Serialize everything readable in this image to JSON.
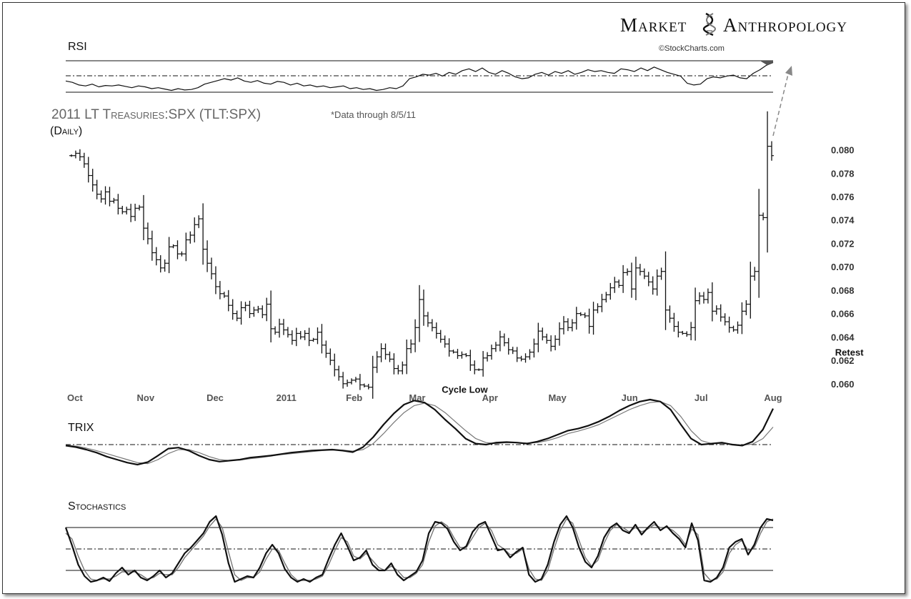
{
  "header": {
    "brand_left": "Market",
    "brand_right": "Anthropology",
    "credit": "©StockCharts.com"
  },
  "chart_title": "2011  LT Treasuries:SPX (TLT:SPX)",
  "chart_note": "*Data through 8/5/11",
  "chart_period": "(Daily)",
  "colors": {
    "ink": "#111111",
    "secondary": "#777777",
    "arrow": "#888888",
    "rsi_fill": "#555555"
  },
  "chart_data": [
    {
      "type": "line",
      "panel": "RSI",
      "title": "RSI",
      "reference_lines": [
        "upper",
        "middle (dash-dot)",
        "lower"
      ],
      "series": [
        {
          "values": [
            55,
            52,
            46,
            44,
            48,
            42,
            45,
            44,
            46,
            43,
            40,
            44,
            42,
            38,
            40,
            37,
            34,
            38,
            35,
            36,
            40,
            48,
            52,
            56,
            60,
            57,
            62,
            55,
            52,
            56,
            50,
            48,
            54,
            52,
            46,
            50,
            44,
            46,
            42,
            44,
            40,
            42,
            44,
            38,
            40,
            36,
            38,
            34,
            36,
            40,
            38,
            44,
            60,
            64,
            70,
            68,
            72,
            66,
            74,
            70,
            78,
            82,
            76,
            84,
            74,
            70,
            78,
            72,
            64,
            60,
            62,
            70,
            74,
            68,
            76,
            72,
            78,
            70,
            74,
            80,
            76,
            78,
            74,
            72,
            82,
            80,
            76,
            84,
            78,
            86,
            80,
            74,
            70,
            66,
            50,
            46,
            48,
            60,
            64,
            62,
            66,
            68,
            62,
            60,
            72,
            80,
            90,
            96
          ]
        }
      ]
    },
    {
      "type": "bar",
      "panel": "price",
      "x_tick_labels": [
        "Oct",
        "Nov",
        "Dec",
        "2011",
        "Feb",
        "Mar",
        "Apr",
        "May",
        "Jun",
        "Jul",
        "Aug"
      ],
      "y_tick_labels": [
        "0.060",
        "0.062",
        "0.064",
        "0.066",
        "0.068",
        "0.070",
        "0.072",
        "0.074",
        "0.076",
        "0.078",
        "0.080"
      ],
      "ylim": [
        0.0595,
        0.0815
      ],
      "annotations": [
        {
          "text": "Cycle Low",
          "x": 94,
          "y": 0.0597
        },
        {
          "text": "Retest",
          "x": 185,
          "y": 0.0635
        }
      ],
      "series": [
        {
          "values": [
            0.0795,
            0.0797,
            0.0794,
            0.0788,
            0.0778,
            0.077,
            0.0762,
            0.0758,
            0.0764,
            0.0756,
            0.0757,
            0.075,
            0.0747,
            0.0749,
            0.0743,
            0.075,
            0.0751,
            0.0733,
            0.0724,
            0.0712,
            0.0706,
            0.0699,
            0.0703,
            0.0717,
            0.0718,
            0.0711,
            0.0711,
            0.0723,
            0.0727,
            0.0736,
            0.0741,
            0.0715,
            0.0703,
            0.0694,
            0.0683,
            0.0677,
            0.0675,
            0.0667,
            0.066,
            0.0656,
            0.0665,
            0.0667,
            0.066,
            0.0663,
            0.0664,
            0.0659,
            0.0668,
            0.0647,
            0.0644,
            0.0651,
            0.0646,
            0.0642,
            0.0637,
            0.0643,
            0.064,
            0.0643,
            0.0637,
            0.0638,
            0.0644,
            0.0633,
            0.0626,
            0.062,
            0.0612,
            0.0606,
            0.06,
            0.0601,
            0.0603,
            0.0604,
            0.0599,
            0.0598,
            0.0597,
            0.0614,
            0.0623,
            0.063,
            0.0625,
            0.0621,
            0.0613,
            0.0611,
            0.0616,
            0.063,
            0.0634,
            0.0648,
            0.0672,
            0.0658,
            0.0652,
            0.0648,
            0.0643,
            0.0638,
            0.0634,
            0.0628,
            0.0627,
            0.0624,
            0.0625,
            0.0624,
            0.0616,
            0.0612,
            0.0612,
            0.0622,
            0.0624,
            0.063,
            0.0633,
            0.064,
            0.0635,
            0.0629,
            0.0628,
            0.0622,
            0.0621,
            0.0623,
            0.0627,
            0.0634,
            0.0645,
            0.064,
            0.0637,
            0.0632,
            0.0638,
            0.0647,
            0.0653,
            0.0648,
            0.0652,
            0.066,
            0.0659,
            0.0658,
            0.0649,
            0.0663,
            0.0666,
            0.0672,
            0.0676,
            0.0682,
            0.0687,
            0.0684,
            0.0695,
            0.0696,
            0.0681,
            0.0699,
            0.0696,
            0.0692,
            0.0687,
            0.0681,
            0.0692,
            0.0696,
            0.0663,
            0.0656,
            0.0649,
            0.0644,
            0.0643,
            0.0642,
            0.0648,
            0.0671,
            0.0675,
            0.0672,
            0.0678,
            0.0662,
            0.0664,
            0.0657,
            0.0653,
            0.0648,
            0.0646,
            0.065,
            0.0662,
            0.0668,
            0.0692,
            0.0696,
            0.0744,
            0.0742,
            0.0803,
            0.0795
          ]
        }
      ]
    },
    {
      "type": "line",
      "panel": "TRIX",
      "title": "TRIX",
      "reference_lines": [
        "zero (dash-dot)"
      ],
      "series": [
        {
          "values": [
            -0.02,
            -0.05,
            -0.1,
            -0.16,
            -0.24,
            -0.3,
            -0.36,
            -0.4,
            -0.35,
            -0.22,
            -0.08,
            -0.06,
            -0.12,
            -0.22,
            -0.3,
            -0.34,
            -0.32,
            -0.3,
            -0.26,
            -0.24,
            -0.22,
            -0.19,
            -0.16,
            -0.14,
            -0.12,
            -0.11,
            -0.1,
            -0.12,
            -0.15,
            -0.05,
            0.15,
            0.4,
            0.62,
            0.8,
            0.88,
            0.84,
            0.7,
            0.5,
            0.32,
            0.12,
            0.02,
            0,
            0.04,
            0.05,
            0.04,
            0.02,
            0.06,
            0.12,
            0.2,
            0.28,
            0.32,
            0.38,
            0.46,
            0.56,
            0.68,
            0.78,
            0.86,
            0.9,
            0.86,
            0.7,
            0.4,
            0.12,
            0,
            0.02,
            0.04,
            0,
            -0.02,
            0.06,
            0.3,
            0.72
          ]
        },
        {
          "values": [
            -0.01,
            -0.03,
            -0.07,
            -0.12,
            -0.18,
            -0.24,
            -0.3,
            -0.36,
            -0.38,
            -0.3,
            -0.18,
            -0.1,
            -0.1,
            -0.16,
            -0.24,
            -0.3,
            -0.32,
            -0.31,
            -0.28,
            -0.26,
            -0.23,
            -0.2,
            -0.18,
            -0.16,
            -0.14,
            -0.12,
            -0.11,
            -0.11,
            -0.13,
            -0.1,
            0.02,
            0.22,
            0.44,
            0.64,
            0.78,
            0.83,
            0.78,
            0.64,
            0.46,
            0.28,
            0.12,
            0.04,
            0.02,
            0.04,
            0.04,
            0.03,
            0.04,
            0.08,
            0.14,
            0.22,
            0.27,
            0.33,
            0.4,
            0.5,
            0.6,
            0.7,
            0.78,
            0.84,
            0.86,
            0.78,
            0.56,
            0.28,
            0.08,
            0.02,
            0.02,
            0.01,
            -0.01,
            0.01,
            0.12,
            0.35
          ]
        }
      ]
    },
    {
      "type": "line",
      "panel": "Stochastics",
      "title": "Stochastics",
      "reference_lines": [
        80,
        50,
        20
      ],
      "series": [
        {
          "values": [
            80,
            55,
            28,
            12,
            4,
            6,
            10,
            5,
            16,
            24,
            14,
            20,
            10,
            6,
            12,
            20,
            10,
            16,
            30,
            44,
            52,
            62,
            72,
            88,
            96,
            70,
            30,
            4,
            8,
            12,
            10,
            24,
            44,
            56,
            44,
            22,
            10,
            4,
            8,
            4,
            10,
            14,
            36,
            56,
            72,
            54,
            34,
            38,
            48,
            28,
            20,
            20,
            30,
            14,
            6,
            12,
            18,
            34,
            72,
            88,
            86,
            78,
            60,
            48,
            54,
            74,
            84,
            88,
            68,
            48,
            50,
            38,
            46,
            52,
            14,
            4,
            8,
            28,
            60,
            84,
            96,
            80,
            52,
            32,
            24,
            40,
            66,
            80,
            86,
            76,
            72,
            84,
            70,
            80,
            88,
            76,
            82,
            72,
            64,
            52,
            86,
            62,
            6,
            4,
            10,
            24,
            52,
            60,
            64,
            42,
            56,
            80,
            92,
            90
          ]
        },
        {
          "values": [
            72,
            64,
            40,
            20,
            8,
            6,
            8,
            8,
            12,
            18,
            18,
            18,
            14,
            8,
            10,
            16,
            14,
            14,
            24,
            38,
            48,
            58,
            68,
            82,
            92,
            80,
            46,
            14,
            6,
            10,
            10,
            18,
            36,
            50,
            48,
            30,
            14,
            6,
            6,
            6,
            8,
            12,
            28,
            48,
            66,
            60,
            40,
            36,
            44,
            34,
            24,
            20,
            26,
            20,
            10,
            10,
            16,
            28,
            60,
            82,
            88,
            82,
            66,
            52,
            52,
            66,
            80,
            86,
            76,
            56,
            50,
            42,
            44,
            50,
            22,
            8,
            6,
            20,
            50,
            76,
            92,
            86,
            62,
            38,
            26,
            34,
            58,
            76,
            84,
            80,
            74,
            80,
            74,
            78,
            84,
            80,
            80,
            76,
            68,
            56,
            78,
            70,
            16,
            6,
            8,
            18,
            44,
            56,
            62,
            48,
            52,
            72,
            88,
            92
          ]
        }
      ]
    }
  ]
}
